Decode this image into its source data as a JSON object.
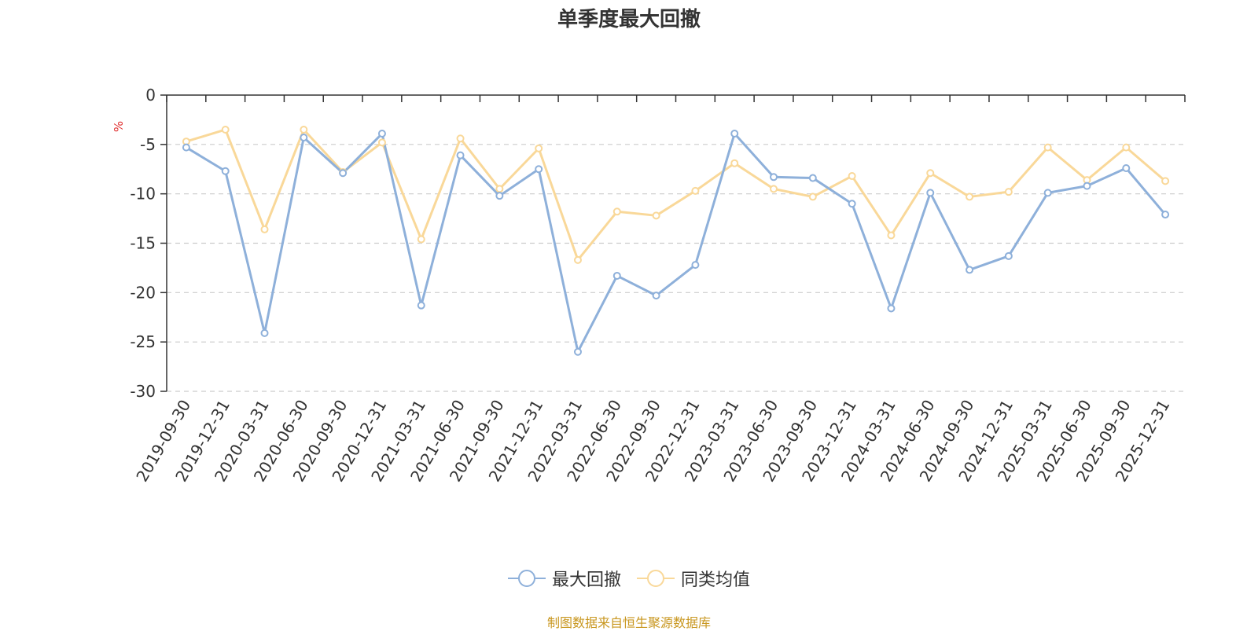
{
  "chart_data": {
    "type": "line",
    "title": "单季度最大回撤",
    "ylabel": "%",
    "ylim": [
      -30,
      0
    ],
    "yticks": [
      0,
      -5,
      -10,
      -15,
      -20,
      -25,
      -30
    ],
    "grid": true,
    "legend_position": "bottom",
    "categories": [
      "2019-09-30",
      "2019-12-31",
      "2020-03-31",
      "2020-06-30",
      "2020-09-30",
      "2020-12-31",
      "2021-03-31",
      "2021-06-30",
      "2021-09-30",
      "2021-12-31",
      "2022-03-31",
      "2022-06-30",
      "2022-09-30",
      "2022-12-31",
      "2023-03-31",
      "2023-06-30",
      "2023-09-30",
      "2023-12-31",
      "2024-03-31",
      "2024-06-30",
      "2024-09-30",
      "2024-12-31",
      "2025-03-31",
      "2025-06-30",
      "2025-09-30",
      "2025-12-31"
    ],
    "series": [
      {
        "name": "最大回撤",
        "color": "#8eb0da",
        "values": [
          -5.3,
          -7.7,
          -24.1,
          -4.3,
          -7.9,
          -3.9,
          -21.3,
          -6.1,
          -10.2,
          -7.5,
          -26.0,
          -18.3,
          -20.3,
          -17.2,
          -3.9,
          -8.3,
          -8.4,
          -11.0,
          -21.6,
          -9.9,
          -17.7,
          -16.3,
          -9.9,
          -9.2,
          -7.4,
          -12.1
        ]
      },
      {
        "name": "同类均值",
        "color": "#f9d899",
        "values": [
          -4.7,
          -3.5,
          -13.6,
          -3.5,
          -7.8,
          -4.8,
          -14.6,
          -4.4,
          -9.5,
          -5.4,
          -16.7,
          -11.8,
          -12.2,
          -9.7,
          -6.9,
          -9.5,
          -10.3,
          -8.2,
          -14.2,
          -7.9,
          -10.3,
          -9.8,
          -5.3,
          -8.6,
          -5.3,
          -8.7
        ]
      }
    ]
  },
  "source_text": "制图数据来自恒生聚源数据库",
  "source_color": "#c8961e"
}
